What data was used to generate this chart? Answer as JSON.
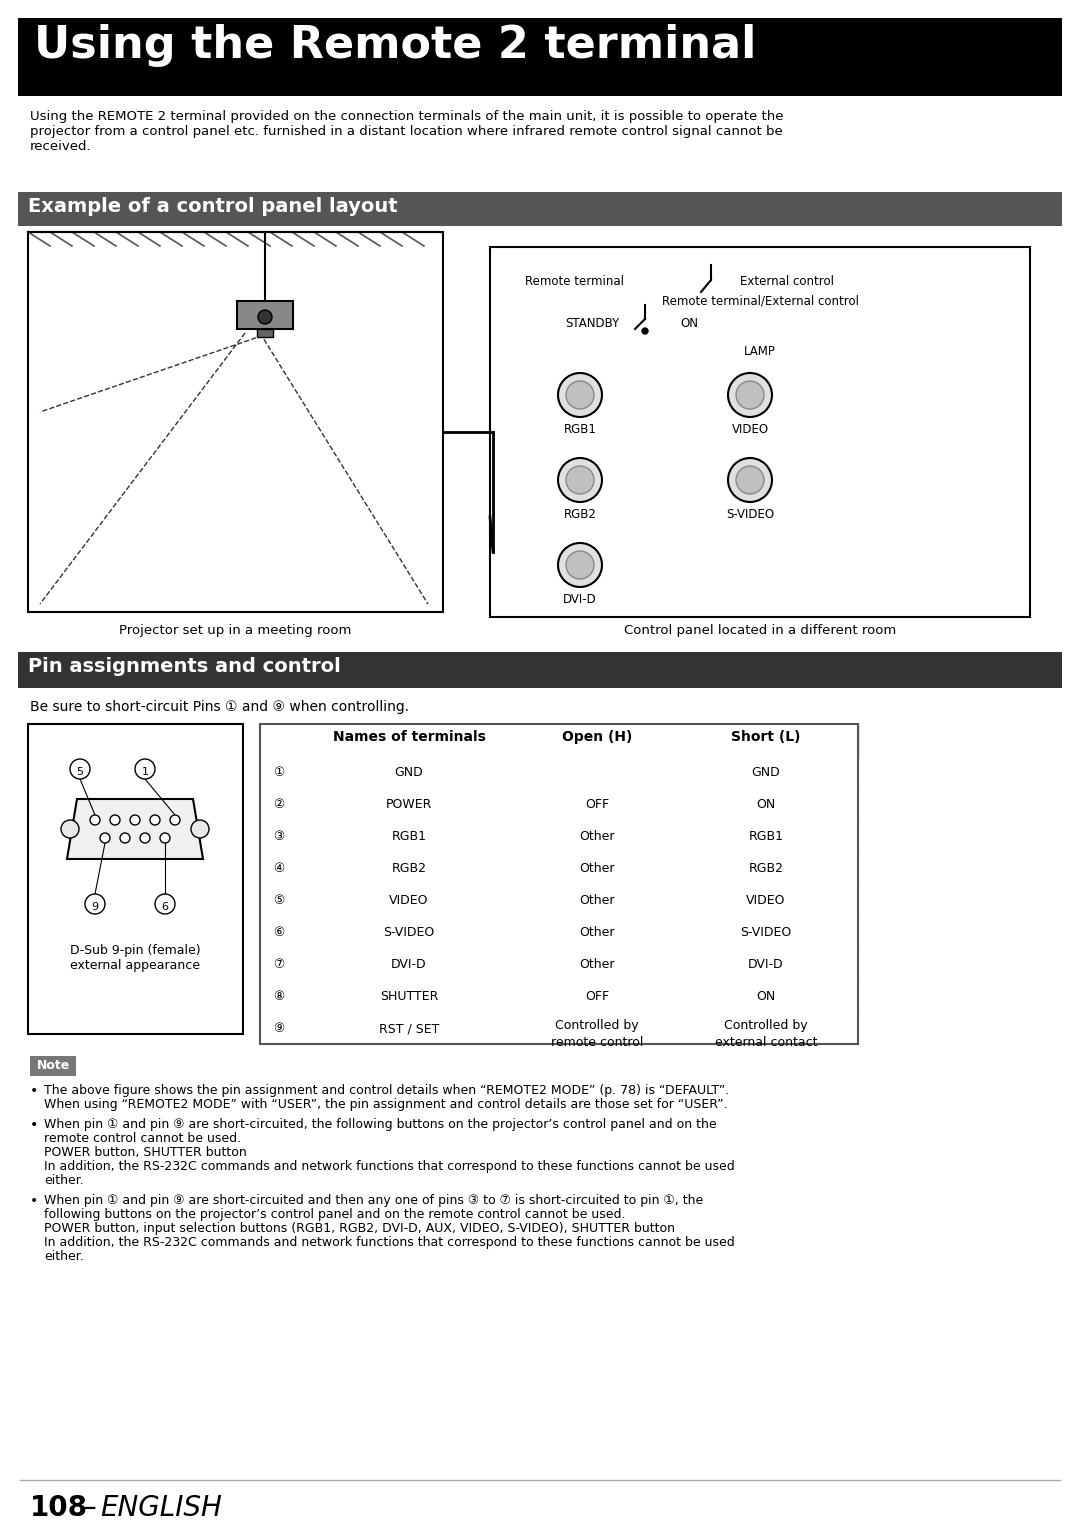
{
  "title": "Using the Remote 2 terminal",
  "title_bg": "#000000",
  "title_color": "#ffffff",
  "intro_text": "Using the REMOTE 2 terminal provided on the connection terminals of the main unit, it is possible to operate the\nprojector from a control panel etc. furnished in a distant location where infrared remote control signal cannot be\nreceived.",
  "section1_title": "Example of a control panel layout",
  "section1_bg": "#555555",
  "section1_color": "#ffffff",
  "caption_left": "Projector set up in a meeting room",
  "caption_right": "Control panel located in a different room",
  "section2_title": "Pin assignments and control",
  "section2_bg": "#333333",
  "section2_color": "#ffffff",
  "pin_intro": "Be sure to short-circuit Pins ① and ⑨ when controlling.",
  "connector_label": "D-Sub 9-pin (female)\nexternal appearance",
  "table_headers": [
    "",
    "Names of terminals",
    "Open (H)",
    "Short (L)"
  ],
  "table_rows": [
    [
      "①",
      "GND",
      "",
      "GND"
    ],
    [
      "②",
      "POWER",
      "OFF",
      "ON"
    ],
    [
      "③",
      "RGB1",
      "Other",
      "RGB1"
    ],
    [
      "④",
      "RGB2",
      "Other",
      "RGB2"
    ],
    [
      "⑤",
      "VIDEO",
      "Other",
      "VIDEO"
    ],
    [
      "⑥",
      "S-VIDEO",
      "Other",
      "S-VIDEO"
    ],
    [
      "⑦",
      "DVI-D",
      "Other",
      "DVI-D"
    ],
    [
      "⑧",
      "SHUTTER",
      "OFF",
      "ON"
    ],
    [
      "⑨",
      "RST / SET",
      "Controlled by\nremote control",
      "Controlled by\nexternal contact"
    ]
  ],
  "note_label": "Note",
  "note_bg": "#777777",
  "note_color": "#ffffff",
  "note_bullets": [
    "The above figure shows the pin assignment and control details when “REMOTE2 MODE” (p. 78) is “DEFAULT”.\nWhen using “REMOTE2 MODE” with “USER”, the pin assignment and control details are those set for “USER”.",
    "When pin ① and pin ⑨ are short-circuited, the following buttons on the projector’s control panel and on the\nremote control cannot be used.\nPOWER button, SHUTTER button\nIn addition, the RS-232C commands and network functions that correspond to these functions cannot be used\neither.",
    "When pin ① and pin ⑨ are short-circuited and then any one of pins ③ to ⑦ is short-circuited to pin ①, the\nfollowing buttons on the projector’s control panel and on the remote control cannot be used.\nPOWER button, input selection buttons (RGB1, RGB2, DVI-D, AUX, VIDEO, S-VIDEO), SHUTTER button\nIn addition, the RS-232C commands and network functions that correspond to these functions cannot be used\neither."
  ],
  "footer": "108 – ENGLISH",
  "bg_color": "#ffffff",
  "text_color": "#000000"
}
